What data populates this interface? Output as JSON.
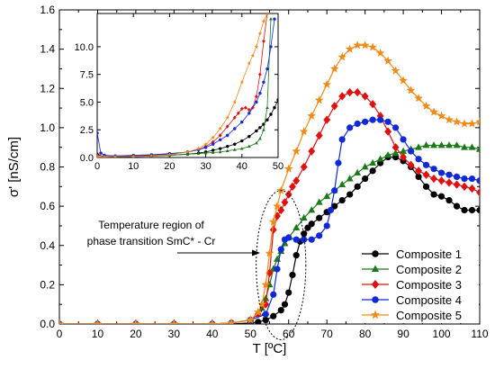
{
  "chart_data": {
    "type": "line",
    "xlabel": "T [ºC]",
    "ylabel": "σ' [nS/cm]",
    "xlim": [
      0,
      110
    ],
    "ylim": [
      0,
      1.6
    ],
    "xticks": [
      "0",
      "10",
      "20",
      "30",
      "40",
      "50",
      "60",
      "70",
      "80",
      "90",
      "100",
      "110"
    ],
    "yticks": [
      "0.0",
      "0.2",
      "0.4",
      "0.6",
      "0.8",
      "1.0",
      "1.2",
      "1.4",
      "1.6"
    ],
    "grid": false,
    "legend_position": "bottom-right",
    "annotation": {
      "lines": [
        "Temperature region of",
        "phase transition SmC* - Cr"
      ],
      "ellipse_center": [
        58,
        0.3
      ],
      "ellipse_radius": [
        6.5,
        0.38
      ]
    },
    "series": [
      {
        "name": "Composite 1",
        "color": "#000000",
        "marker": "circle",
        "x": [
          0,
          10,
          20,
          30,
          40,
          45,
          50,
          52,
          54,
          56,
          58,
          59,
          60,
          61,
          62,
          63,
          64,
          65,
          66,
          68,
          70,
          72,
          74,
          76,
          78,
          80,
          82,
          84,
          86,
          88,
          90,
          92,
          94,
          96,
          98,
          100,
          102,
          104,
          106,
          108,
          110
        ],
        "y": [
          0,
          0,
          0,
          0,
          0,
          0,
          0.005,
          0.01,
          0.02,
          0.04,
          0.07,
          0.1,
          0.16,
          0.25,
          0.35,
          0.42,
          0.46,
          0.49,
          0.51,
          0.54,
          0.57,
          0.6,
          0.63,
          0.66,
          0.7,
          0.74,
          0.78,
          0.82,
          0.85,
          0.85,
          0.83,
          0.8,
          0.75,
          0.7,
          0.66,
          0.65,
          0.63,
          0.6,
          0.58,
          0.58,
          0.58
        ]
      },
      {
        "name": "Composite 2",
        "color": "#1a7a1a",
        "marker": "triangle",
        "x": [
          0,
          10,
          20,
          30,
          40,
          45,
          50,
          52,
          53,
          54,
          55,
          56,
          57,
          58,
          59,
          60,
          62,
          64,
          66,
          68,
          70,
          72,
          74,
          76,
          78,
          80,
          82,
          84,
          86,
          88,
          90,
          92,
          94,
          96,
          98,
          100,
          102,
          104,
          106,
          108,
          110
        ],
        "y": [
          0,
          0,
          0,
          0,
          0,
          0.005,
          0.02,
          0.05,
          0.08,
          0.13,
          0.2,
          0.28,
          0.33,
          0.37,
          0.41,
          0.44,
          0.49,
          0.54,
          0.58,
          0.62,
          0.65,
          0.68,
          0.71,
          0.74,
          0.77,
          0.8,
          0.82,
          0.84,
          0.86,
          0.87,
          0.88,
          0.89,
          0.9,
          0.91,
          0.91,
          0.91,
          0.91,
          0.91,
          0.9,
          0.9,
          0.89
        ]
      },
      {
        "name": "Composite 3",
        "color": "#e01010",
        "marker": "diamond",
        "x": [
          0,
          10,
          20,
          30,
          40,
          45,
          50,
          52,
          54,
          55,
          56,
          57,
          58,
          59,
          60,
          61,
          62,
          64,
          66,
          68,
          70,
          72,
          74,
          76,
          78,
          80,
          82,
          84,
          86,
          88,
          90,
          92,
          94,
          96,
          98,
          100,
          102,
          104,
          106,
          108,
          110
        ],
        "y": [
          0,
          0,
          0,
          0,
          0,
          0.005,
          0.02,
          0.05,
          0.1,
          0.26,
          0.48,
          0.55,
          0.58,
          0.62,
          0.66,
          0.7,
          0.73,
          0.8,
          0.88,
          0.96,
          1.04,
          1.11,
          1.16,
          1.18,
          1.18,
          1.16,
          1.12,
          1.06,
          0.98,
          0.9,
          0.85,
          0.81,
          0.78,
          0.76,
          0.74,
          0.73,
          0.72,
          0.71,
          0.7,
          0.69,
          0.67
        ]
      },
      {
        "name": "Composite 4",
        "color": "#0f28d8",
        "marker": "circle",
        "x": [
          0,
          10,
          20,
          30,
          40,
          45,
          50,
          54,
          56,
          57,
          58,
          59,
          60,
          62,
          64,
          66,
          68,
          70,
          71,
          72,
          73,
          74,
          76,
          78,
          80,
          82,
          84,
          86,
          88,
          90,
          92,
          94,
          96,
          98,
          100,
          102,
          104,
          106,
          108,
          110
        ],
        "y": [
          0,
          0,
          0,
          0,
          0,
          0.005,
          0.02,
          0.05,
          0.15,
          0.28,
          0.38,
          0.43,
          0.44,
          0.43,
          0.43,
          0.43,
          0.45,
          0.5,
          0.58,
          0.68,
          0.82,
          0.94,
          1.0,
          1.02,
          1.03,
          1.04,
          1.04,
          1.03,
          1.0,
          0.94,
          0.88,
          0.84,
          0.81,
          0.79,
          0.77,
          0.76,
          0.75,
          0.74,
          0.74,
          0.73
        ]
      },
      {
        "name": "Composite 5",
        "color": "#f08a18",
        "marker": "star",
        "x": [
          0,
          10,
          20,
          30,
          40,
          45,
          50,
          52,
          53,
          54,
          55,
          56,
          57,
          58,
          60,
          62,
          64,
          66,
          68,
          70,
          72,
          74,
          76,
          78,
          80,
          82,
          84,
          86,
          88,
          90,
          92,
          94,
          96,
          98,
          100,
          102,
          104,
          106,
          108,
          110
        ],
        "y": [
          0,
          0,
          0,
          0,
          0,
          0.005,
          0.02,
          0.06,
          0.1,
          0.2,
          0.36,
          0.52,
          0.6,
          0.68,
          0.79,
          0.88,
          0.98,
          1.06,
          1.14,
          1.22,
          1.3,
          1.36,
          1.4,
          1.42,
          1.42,
          1.41,
          1.38,
          1.34,
          1.29,
          1.24,
          1.19,
          1.15,
          1.11,
          1.08,
          1.06,
          1.04,
          1.03,
          1.02,
          1.02,
          1.03
        ]
      }
    ],
    "inset": {
      "type": "line",
      "xlim": [
        0,
        50
      ],
      "ylim": [
        0,
        13
      ],
      "xticks": [
        "0",
        "10",
        "20",
        "30",
        "40",
        "50"
      ],
      "yticks": [
        "0.0",
        "2.5",
        "5.0",
        "7.5",
        "10.0"
      ],
      "series": [
        {
          "name": "Composite 1",
          "color": "#000000",
          "marker": "circle",
          "x": [
            0,
            2,
            5,
            10,
            15,
            20,
            25,
            28,
            30,
            32,
            34,
            36,
            38,
            40,
            42,
            44,
            45,
            46,
            47,
            48,
            49,
            50
          ],
          "y": [
            0.3,
            0.05,
            0.05,
            0.08,
            0.12,
            0.2,
            0.3,
            0.4,
            0.5,
            0.65,
            0.8,
            1.0,
            1.2,
            1.5,
            1.9,
            2.4,
            2.7,
            3.0,
            3.4,
            3.9,
            4.5,
            5.2
          ]
        },
        {
          "name": "Composite 2",
          "color": "#1a7a1a",
          "marker": "triangle",
          "x": [
            0,
            2,
            5,
            10,
            15,
            20,
            25,
            28,
            30,
            32,
            34,
            36,
            38,
            40,
            42,
            44,
            45,
            46,
            47,
            48
          ],
          "y": [
            0.05,
            0.05,
            0.08,
            0.1,
            0.15,
            0.2,
            0.3,
            0.35,
            0.4,
            0.45,
            0.5,
            0.6,
            0.7,
            0.8,
            1.0,
            1.3,
            1.7,
            2.5,
            4.5,
            12.5
          ]
        },
        {
          "name": "Composite 3",
          "color": "#e01010",
          "marker": "diamond",
          "x": [
            0,
            2,
            5,
            10,
            15,
            20,
            25,
            28,
            30,
            32,
            34,
            36,
            38,
            39,
            40,
            41,
            42,
            43,
            44,
            45,
            46,
            47
          ],
          "y": [
            0.2,
            0.1,
            0.1,
            0.15,
            0.2,
            0.3,
            0.5,
            0.7,
            1.0,
            1.4,
            2.0,
            2.8,
            3.6,
            4.0,
            4.4,
            4.5,
            4.3,
            4.5,
            5.5,
            7.5,
            10.5,
            13.0
          ]
        },
        {
          "name": "Composite 4",
          "color": "#0f28d8",
          "marker": "circle",
          "x": [
            0,
            1,
            2,
            5,
            10,
            15,
            20,
            25,
            28,
            30,
            32,
            34,
            36,
            38,
            40,
            42,
            44,
            45,
            46,
            47,
            48,
            49
          ],
          "y": [
            2.2,
            0.4,
            0.2,
            0.15,
            0.2,
            0.25,
            0.35,
            0.5,
            0.7,
            0.9,
            1.2,
            1.6,
            2.0,
            2.6,
            3.2,
            4.0,
            5.0,
            5.8,
            6.8,
            8.0,
            10.0,
            12.5
          ]
        },
        {
          "name": "Composite 5",
          "color": "#f08a18",
          "marker": "star",
          "x": [
            0,
            2,
            5,
            10,
            15,
            20,
            25,
            28,
            30,
            32,
            34,
            36,
            38,
            40,
            42,
            43,
            44,
            45,
            46,
            47
          ],
          "y": [
            0.05,
            0.05,
            0.08,
            0.1,
            0.15,
            0.25,
            0.5,
            0.8,
            1.2,
            1.8,
            2.6,
            3.6,
            5.0,
            6.8,
            8.5,
            9.2,
            10.0,
            11.2,
            12.3,
            13.0
          ]
        }
      ]
    }
  }
}
